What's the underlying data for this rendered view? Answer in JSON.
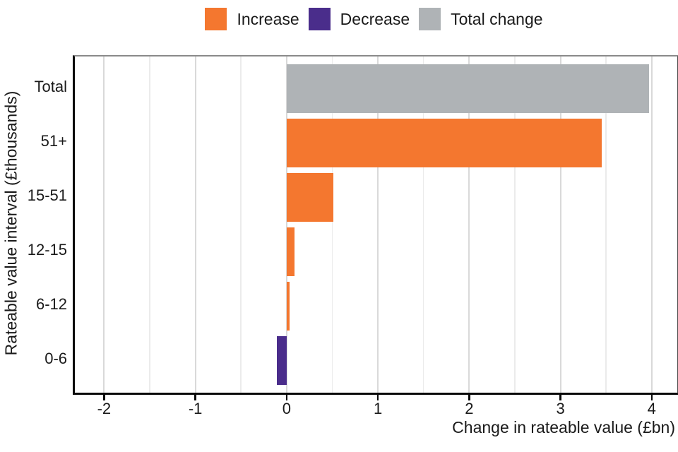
{
  "legend": {
    "items": [
      {
        "label": "Increase",
        "color": "#F4772F"
      },
      {
        "label": "Decrease",
        "color": "#4A2D8B"
      },
      {
        "label": "Total change",
        "color": "#AFB3B6"
      }
    ]
  },
  "axes": {
    "x_title": "Change in rateable value (£bn)",
    "y_title": "Rateable value interval (£thousands)"
  },
  "chart_data": {
    "type": "bar",
    "orientation": "horizontal",
    "title": "",
    "xlabel": "Change in rateable value (£bn)",
    "ylabel": "Rateable value interval (£thousands)",
    "categories": [
      "Total",
      "51+",
      "15-51",
      "12-15",
      "6-12",
      "0-6"
    ],
    "values": [
      3.97,
      3.45,
      0.51,
      0.09,
      0.03,
      -0.11
    ],
    "bar_series": [
      "Total change",
      "Increase",
      "Increase",
      "Increase",
      "Increase",
      "Decrease"
    ],
    "colors": {
      "Increase": "#F4772F",
      "Decrease": "#4A2D8B",
      "Total change": "#AFB3B6"
    },
    "xlim": [
      -2.32,
      4.28
    ],
    "x_ticks": [
      -2,
      -1,
      0,
      1,
      2,
      3,
      4
    ],
    "x_tick_labels": [
      "-2",
      "-1",
      "0",
      "1",
      "2",
      "3",
      "4"
    ],
    "x_minor_ticks": [
      -1.5,
      -0.5,
      0.5,
      1.5,
      2.5,
      3.5
    ],
    "grid": "vertical major and minor gridlines, white panel",
    "legend_position": "top-center"
  }
}
